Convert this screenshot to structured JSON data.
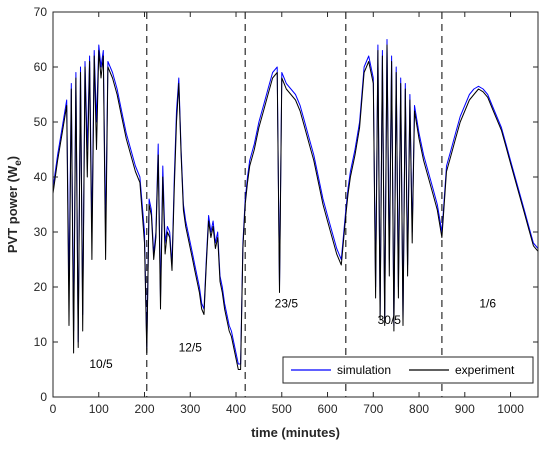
{
  "chart_data": {
    "type": "line",
    "xlabel": "time (minutes)",
    "ylabel_main": "PVT power (W",
    "ylabel_sub": "e",
    "ylabel_close": ")",
    "xlim": [
      0,
      1060
    ],
    "ylim": [
      0,
      70
    ],
    "xticks": [
      0,
      100,
      200,
      300,
      400,
      500,
      600,
      700,
      800,
      900,
      1000
    ],
    "yticks": [
      0,
      10,
      20,
      30,
      40,
      50,
      60,
      70
    ],
    "grid": false,
    "legend_position": "bottom-right",
    "day_separators": [
      205,
      420,
      640,
      850
    ],
    "day_labels": [
      {
        "text": "10/5",
        "x": 105,
        "y": 6
      },
      {
        "text": "12/5",
        "x": 300,
        "y": 9
      },
      {
        "text": "23/5",
        "x": 510,
        "y": 17
      },
      {
        "text": "30/5",
        "x": 735,
        "y": 14
      },
      {
        "text": "1/6",
        "x": 950,
        "y": 17
      }
    ],
    "colors": {
      "simulation": "#0000ff",
      "experiment": "#000000",
      "separator": "#000000"
    },
    "series": [
      {
        "name": "simulation",
        "x": [
          0,
          10,
          20,
          30,
          35,
          40,
          45,
          50,
          55,
          60,
          65,
          70,
          75,
          80,
          85,
          90,
          95,
          100,
          105,
          110,
          115,
          120,
          130,
          140,
          150,
          160,
          170,
          180,
          190,
          200,
          205,
          210,
          215,
          220,
          225,
          230,
          235,
          240,
          245,
          250,
          255,
          260,
          265,
          270,
          275,
          280,
          285,
          290,
          295,
          300,
          305,
          310,
          315,
          320,
          325,
          330,
          335,
          340,
          345,
          350,
          355,
          360,
          365,
          370,
          375,
          380,
          385,
          390,
          395,
          400,
          405,
          410,
          415,
          420,
          425,
          430,
          440,
          450,
          460,
          470,
          480,
          490,
          495,
          500,
          505,
          510,
          520,
          530,
          540,
          550,
          560,
          570,
          580,
          590,
          600,
          610,
          620,
          630,
          640,
          645,
          650,
          660,
          670,
          680,
          690,
          700,
          705,
          710,
          715,
          720,
          725,
          730,
          735,
          740,
          745,
          750,
          755,
          760,
          765,
          770,
          775,
          780,
          785,
          790,
          800,
          810,
          820,
          830,
          840,
          850,
          860,
          870,
          880,
          890,
          900,
          910,
          920,
          930,
          940,
          950,
          960,
          970,
          980,
          990,
          1000,
          1010,
          1020,
          1030,
          1040,
          1050,
          1060
        ],
        "y": [
          38,
          44,
          49,
          54,
          20,
          57,
          12,
          59,
          10,
          60,
          15,
          61,
          45,
          62,
          30,
          63,
          50,
          64,
          60,
          63,
          30,
          61,
          59,
          56,
          52,
          48,
          45,
          42,
          40,
          30,
          9,
          36,
          34,
          26,
          30,
          46,
          18,
          42,
          28,
          31,
          30,
          24,
          40,
          52,
          58,
          45,
          35,
          32,
          30,
          28,
          26,
          24,
          22,
          20,
          17,
          16,
          25,
          33,
          30,
          32,
          28,
          30,
          22,
          20,
          17,
          15,
          13,
          12,
          10,
          8,
          6,
          6,
          28,
          36,
          40,
          43,
          46,
          50,
          53,
          56,
          59,
          60,
          20,
          59,
          58,
          57,
          56,
          55,
          53,
          50,
          47,
          44,
          40,
          36,
          33,
          30,
          27,
          25,
          34,
          38,
          41,
          45,
          50,
          60,
          62,
          58,
          20,
          64,
          15,
          63,
          14,
          65,
          25,
          62,
          13,
          60,
          20,
          58,
          14,
          57,
          24,
          55,
          30,
          53,
          48,
          44,
          41,
          38,
          35,
          30,
          42,
          45,
          48,
          51,
          53,
          55,
          56,
          56.5,
          56,
          55,
          53,
          51,
          49,
          46,
          43,
          40,
          37,
          34,
          31,
          28,
          27
        ]
      },
      {
        "name": "experiment",
        "x": [
          0,
          10,
          20,
          30,
          35,
          40,
          45,
          50,
          55,
          60,
          65,
          70,
          75,
          80,
          85,
          90,
          95,
          100,
          105,
          110,
          115,
          120,
          130,
          140,
          150,
          160,
          170,
          180,
          190,
          200,
          205,
          210,
          215,
          220,
          225,
          230,
          235,
          240,
          245,
          250,
          255,
          260,
          265,
          270,
          275,
          280,
          285,
          290,
          295,
          300,
          305,
          310,
          315,
          320,
          325,
          330,
          335,
          340,
          345,
          350,
          355,
          360,
          365,
          370,
          375,
          380,
          385,
          390,
          395,
          400,
          405,
          410,
          415,
          420,
          425,
          430,
          440,
          450,
          460,
          470,
          480,
          490,
          495,
          500,
          505,
          510,
          520,
          530,
          540,
          550,
          560,
          570,
          580,
          590,
          600,
          610,
          620,
          630,
          640,
          645,
          650,
          660,
          670,
          680,
          690,
          700,
          705,
          710,
          715,
          720,
          725,
          730,
          735,
          740,
          745,
          750,
          755,
          760,
          765,
          770,
          775,
          780,
          785,
          790,
          800,
          810,
          820,
          830,
          840,
          850,
          860,
          870,
          880,
          890,
          900,
          910,
          920,
          930,
          940,
          950,
          960,
          970,
          980,
          990,
          1000,
          1010,
          1020,
          1030,
          1040,
          1050,
          1060
        ],
        "y": [
          37,
          43,
          48,
          53,
          13,
          56,
          8,
          58,
          9,
          59,
          12,
          60,
          40,
          61,
          25,
          62,
          45,
          63,
          58,
          62,
          25,
          60,
          58,
          55,
          51,
          47,
          44,
          41,
          39,
          28,
          8,
          35,
          33,
          25,
          29,
          44,
          16,
          40,
          26,
          30,
          29,
          23,
          38,
          50,
          57,
          44,
          34,
          31,
          29,
          27,
          25,
          23,
          21,
          19,
          16,
          15,
          24,
          32,
          29,
          31,
          27,
          29,
          21,
          19,
          16,
          14,
          12,
          11,
          9,
          7,
          5,
          5,
          27,
          35,
          39,
          42,
          45,
          49,
          52,
          55,
          58,
          59,
          19,
          58,
          57,
          56,
          55,
          54,
          52,
          49,
          46,
          43,
          39,
          35,
          32,
          29,
          26,
          24,
          33,
          37,
          40,
          44,
          49,
          59,
          61,
          57,
          18,
          63,
          14,
          62,
          13,
          64,
          22,
          61,
          12,
          59,
          18,
          57,
          13,
          56,
          22,
          54,
          28,
          52,
          47,
          43,
          40,
          37,
          34,
          29,
          41,
          44,
          47,
          50,
          52,
          54,
          55,
          56,
          55.5,
          54.5,
          52.5,
          50.5,
          48.5,
          45.5,
          42.5,
          39.5,
          36.5,
          33.5,
          30.5,
          27.5,
          26.5
        ]
      }
    ]
  },
  "legend": {
    "simulation_label": "simulation",
    "experiment_label": "experiment"
  }
}
